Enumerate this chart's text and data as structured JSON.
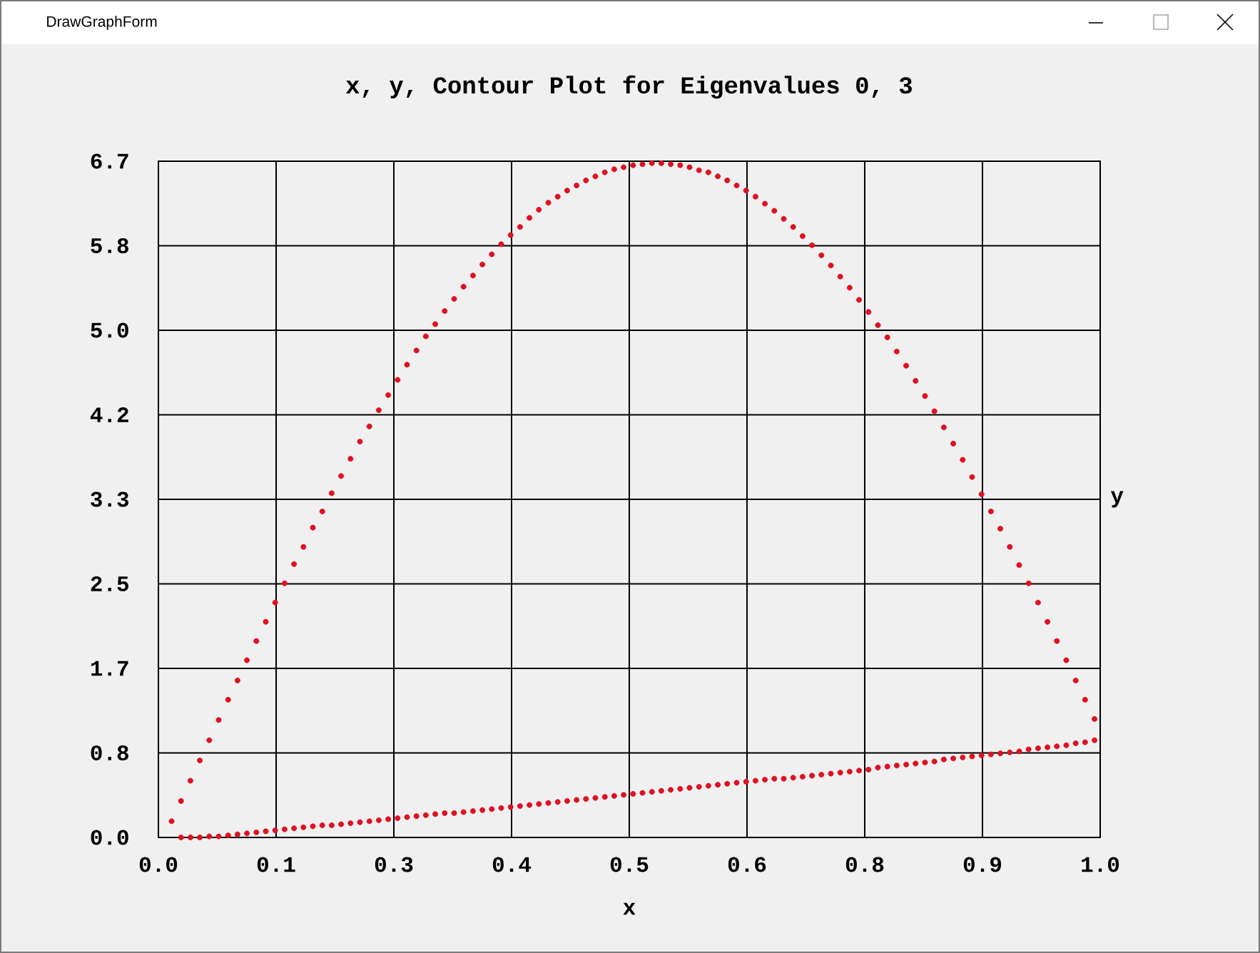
{
  "chart_data": {
    "type": "scatter",
    "title": "x, y, Contour Plot for Eigenvalues 0, 3",
    "xlabel": "x",
    "ylabel": "y",
    "annotations": [
      "DrawGraphForm"
    ],
    "xlim": [
      0,
      1
    ],
    "ylim": [
      0,
      6.68
    ],
    "xticks": [
      {
        "value": 0,
        "label": "0.0"
      },
      {
        "value": 0.125,
        "label": "0.1"
      },
      {
        "value": 0.25,
        "label": "0.3"
      },
      {
        "value": 0.375,
        "label": "0.4"
      },
      {
        "value": 0.5,
        "label": "0.5"
      },
      {
        "value": 0.625,
        "label": "0.6"
      },
      {
        "value": 0.75,
        "label": "0.8"
      },
      {
        "value": 0.875,
        "label": "0.9"
      },
      {
        "value": 1,
        "label": "1.0"
      }
    ],
    "yticks": [
      {
        "value": 0,
        "label": "0.0"
      },
      {
        "value": 0.835,
        "label": "0.8"
      },
      {
        "value": 1.67,
        "label": "1.7"
      },
      {
        "value": 2.505,
        "label": "2.5"
      },
      {
        "value": 3.34,
        "label": "3.3"
      },
      {
        "value": 4.175,
        "label": "4.2"
      },
      {
        "value": 5.01,
        "label": "5.0"
      },
      {
        "value": 5.845,
        "label": "5.8"
      },
      {
        "value": 6.68,
        "label": "6.7"
      }
    ],
    "grid": true,
    "marker": "circle",
    "series": [
      {
        "color": "#dd1122",
        "x": [
          0.014,
          0.024,
          0.034,
          0.044,
          0.054,
          0.064,
          0.074,
          0.084,
          0.094,
          0.104,
          0.114,
          0.124,
          0.134,
          0.144,
          0.154,
          0.164,
          0.174,
          0.184,
          0.194,
          0.204,
          0.214,
          0.224,
          0.234,
          0.244,
          0.254,
          0.264,
          0.274,
          0.284,
          0.294,
          0.304,
          0.314,
          0.324,
          0.334,
          0.344,
          0.354,
          0.364,
          0.374,
          0.384,
          0.394,
          0.404,
          0.414,
          0.424,
          0.434,
          0.444,
          0.454,
          0.464,
          0.474,
          0.484,
          0.494,
          0.504,
          0.514,
          0.524,
          0.534,
          0.544,
          0.554,
          0.564,
          0.574,
          0.584,
          0.594,
          0.604,
          0.614,
          0.624,
          0.634,
          0.644,
          0.654,
          0.664,
          0.674,
          0.684,
          0.694,
          0.704,
          0.714,
          0.724,
          0.734,
          0.744,
          0.754,
          0.764,
          0.774,
          0.784,
          0.794,
          0.804,
          0.814,
          0.824,
          0.834,
          0.844,
          0.854,
          0.864,
          0.874,
          0.884,
          0.894,
          0.904,
          0.914,
          0.924,
          0.934,
          0.944,
          0.954,
          0.964,
          0.974,
          0.984,
          0.994
        ],
        "values": [
          0.16,
          0.36,
          0.56,
          0.76,
          0.96,
          1.16,
          1.36,
          1.55,
          1.75,
          1.94,
          2.13,
          2.32,
          2.51,
          2.7,
          2.87,
          3.06,
          3.22,
          3.4,
          3.57,
          3.74,
          3.91,
          4.06,
          4.22,
          4.37,
          4.52,
          4.67,
          4.81,
          4.95,
          5.07,
          5.2,
          5.32,
          5.44,
          5.55,
          5.66,
          5.76,
          5.86,
          5.95,
          6.03,
          6.12,
          6.2,
          6.27,
          6.33,
          6.39,
          6.44,
          6.49,
          6.53,
          6.57,
          6.6,
          6.62,
          6.64,
          6.65,
          6.66,
          6.66,
          6.65,
          6.64,
          6.62,
          6.59,
          6.57,
          6.53,
          6.49,
          6.44,
          6.39,
          6.33,
          6.26,
          6.19,
          6.11,
          6.03,
          5.94,
          5.85,
          5.75,
          5.65,
          5.54,
          5.43,
          5.31,
          5.19,
          5.06,
          4.94,
          4.8,
          4.66,
          4.51,
          4.36,
          4.21,
          4.05,
          3.89,
          3.73,
          3.56,
          3.39,
          3.22,
          3.05,
          2.87,
          2.69,
          2.51,
          2.32,
          2.13,
          1.94,
          1.75,
          1.55,
          1.36,
          1.17
        ]
      },
      {
        "color": "#dd1122",
        "x": [
          0.024,
          0.034,
          0.044,
          0.054,
          0.064,
          0.074,
          0.084,
          0.094,
          0.104,
          0.114,
          0.124,
          0.134,
          0.144,
          0.154,
          0.164,
          0.174,
          0.184,
          0.194,
          0.204,
          0.214,
          0.224,
          0.234,
          0.244,
          0.254,
          0.264,
          0.274,
          0.284,
          0.294,
          0.304,
          0.314,
          0.324,
          0.334,
          0.344,
          0.354,
          0.364,
          0.374,
          0.384,
          0.394,
          0.404,
          0.414,
          0.424,
          0.434,
          0.444,
          0.454,
          0.464,
          0.474,
          0.484,
          0.494,
          0.504,
          0.514,
          0.524,
          0.534,
          0.544,
          0.554,
          0.564,
          0.574,
          0.584,
          0.594,
          0.604,
          0.614,
          0.624,
          0.634,
          0.644,
          0.654,
          0.664,
          0.674,
          0.684,
          0.694,
          0.704,
          0.714,
          0.724,
          0.734,
          0.744,
          0.754,
          0.764,
          0.774,
          0.784,
          0.794,
          0.804,
          0.814,
          0.824,
          0.834,
          0.844,
          0.854,
          0.864,
          0.874,
          0.884,
          0.894,
          0.904,
          0.914,
          0.924,
          0.934,
          0.944,
          0.954,
          0.964,
          0.974,
          0.984,
          0.994
        ],
        "values": [
          0.0,
          0.0,
          0.0,
          0.01,
          0.01,
          0.02,
          0.03,
          0.04,
          0.05,
          0.06,
          0.07,
          0.08,
          0.09,
          0.1,
          0.11,
          0.12,
          0.12,
          0.13,
          0.14,
          0.15,
          0.16,
          0.17,
          0.18,
          0.19,
          0.2,
          0.21,
          0.22,
          0.23,
          0.24,
          0.24,
          0.25,
          0.26,
          0.27,
          0.28,
          0.29,
          0.3,
          0.31,
          0.32,
          0.33,
          0.34,
          0.35,
          0.36,
          0.37,
          0.38,
          0.39,
          0.4,
          0.41,
          0.42,
          0.43,
          0.44,
          0.45,
          0.46,
          0.47,
          0.48,
          0.49,
          0.5,
          0.51,
          0.52,
          0.53,
          0.54,
          0.55,
          0.56,
          0.57,
          0.58,
          0.58,
          0.59,
          0.6,
          0.61,
          0.62,
          0.63,
          0.64,
          0.65,
          0.66,
          0.67,
          0.69,
          0.7,
          0.71,
          0.72,
          0.73,
          0.74,
          0.75,
          0.77,
          0.78,
          0.79,
          0.8,
          0.81,
          0.82,
          0.83,
          0.84,
          0.85,
          0.87,
          0.88,
          0.89,
          0.9,
          0.91,
          0.93,
          0.94,
          0.96
        ]
      }
    ]
  }
}
